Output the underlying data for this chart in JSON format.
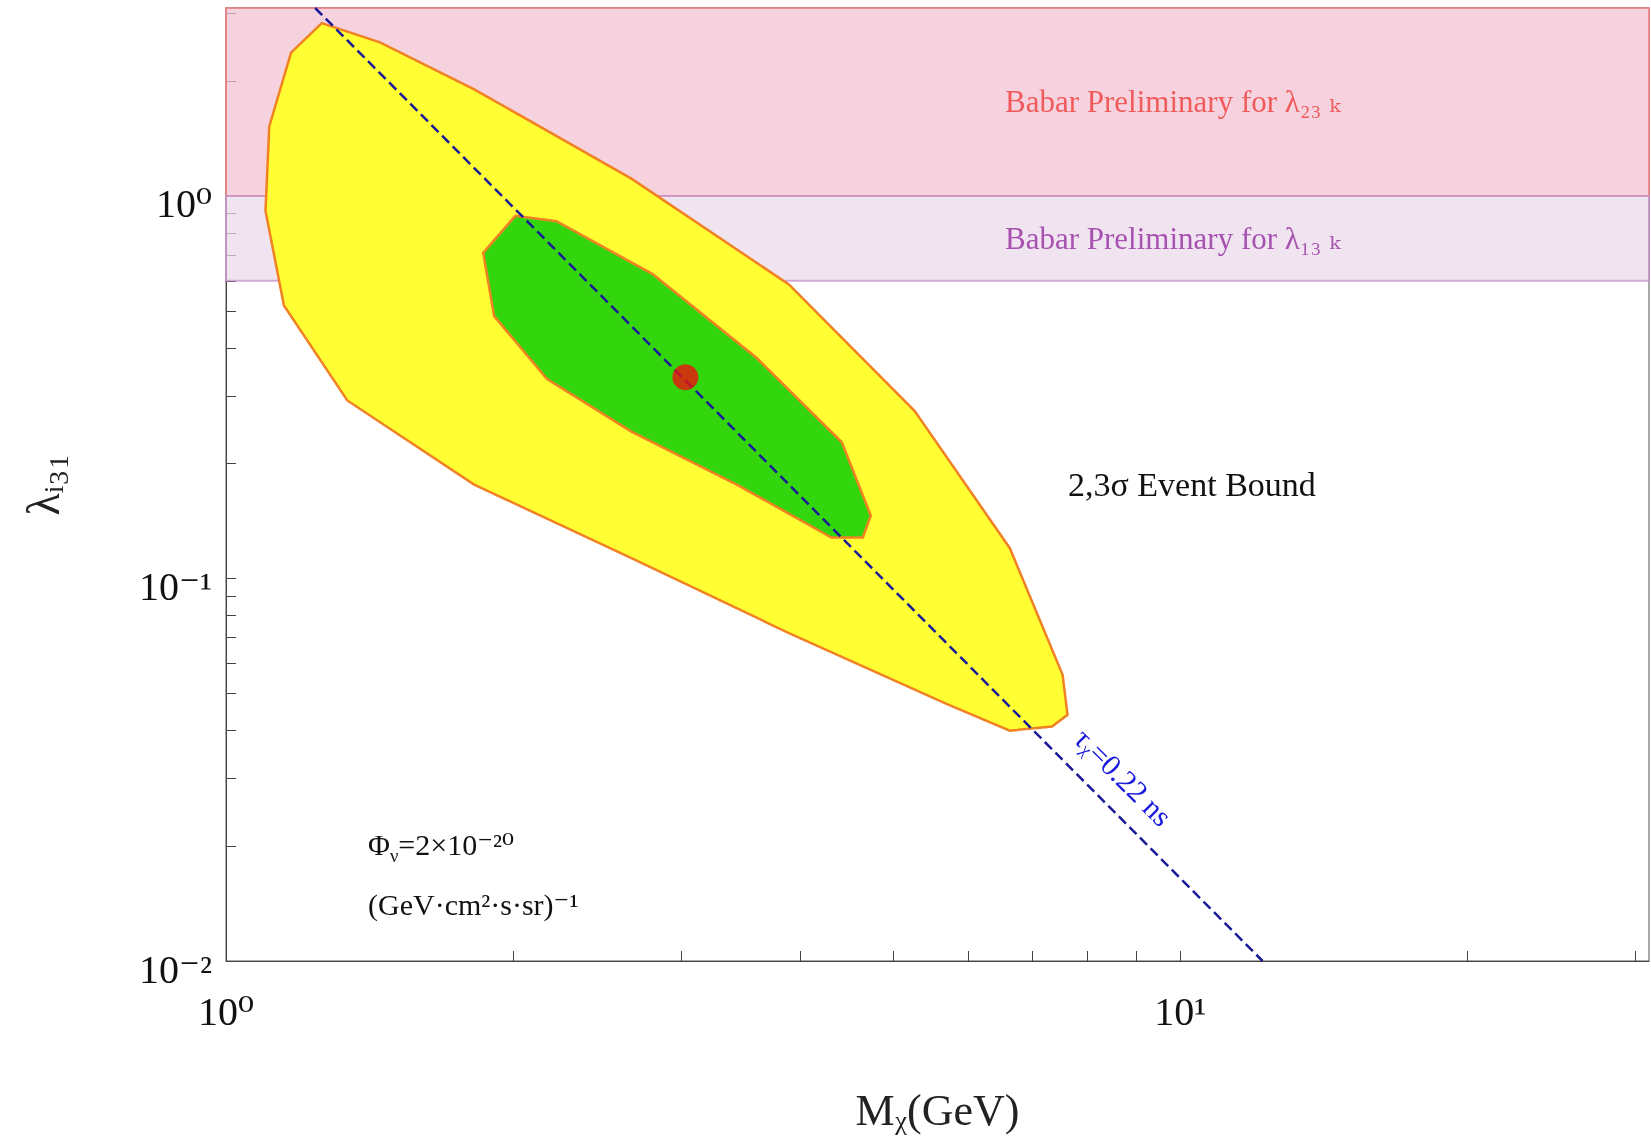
{
  "chart_data": {
    "type": "line",
    "xlabel": "Mᵪ(GeV)",
    "ylabel": "λᵢ₃₁",
    "log": "xy",
    "xlim": [
      1,
      31
    ],
    "ylim": [
      0.01,
      3.1
    ],
    "xticks": [
      {
        "value": 1,
        "label": "10⁰"
      },
      {
        "value": 2,
        "label": null
      },
      {
        "value": 3,
        "label": null
      },
      {
        "value": 4,
        "label": null
      },
      {
        "value": 5,
        "label": null
      },
      {
        "value": 6,
        "label": null
      },
      {
        "value": 7,
        "label": null
      },
      {
        "value": 8,
        "label": null
      },
      {
        "value": 9,
        "label": null
      },
      {
        "value": 10,
        "label": "10¹"
      },
      {
        "value": 20,
        "label": null
      },
      {
        "value": 30,
        "label": null
      }
    ],
    "yticks": [
      {
        "value": 0.01,
        "label": "10⁻²"
      },
      {
        "value": 0.02,
        "label": null
      },
      {
        "value": 0.03,
        "label": null
      },
      {
        "value": 0.04,
        "label": null
      },
      {
        "value": 0.05,
        "label": null
      },
      {
        "value": 0.06,
        "label": null
      },
      {
        "value": 0.07,
        "label": null
      },
      {
        "value": 0.08,
        "label": null
      },
      {
        "value": 0.09,
        "label": null
      },
      {
        "value": 0.1,
        "label": "10⁻¹"
      },
      {
        "value": 0.2,
        "label": null
      },
      {
        "value": 0.3,
        "label": null
      },
      {
        "value": 0.4,
        "label": null
      },
      {
        "value": 0.5,
        "label": null
      },
      {
        "value": 0.6,
        "label": null
      },
      {
        "value": 0.7,
        "label": null
      },
      {
        "value": 0.8,
        "label": null
      },
      {
        "value": 0.9,
        "label": null
      },
      {
        "value": 1,
        "label": "10⁰"
      },
      {
        "value": 2,
        "label": null
      },
      {
        "value": 3,
        "label": null
      }
    ],
    "grid": false,
    "legend": false,
    "series": [
      {
        "type": "area",
        "color": "#ffff33",
        "x": [
          1.26,
          1.45,
          1.82,
          2.66,
          3.89,
          5.27,
          6.63,
          7.53,
          7.62,
          7.34,
          6.63,
          5.69,
          3.89,
          2.66,
          1.82,
          1.34,
          1.15,
          1.1,
          1.11,
          1.17,
          1.26
        ],
        "values": [
          2.83,
          2.52,
          1.9,
          1.11,
          0.587,
          0.274,
          0.12,
          0.056,
          0.044,
          0.041,
          0.04,
          0.047,
          0.072,
          0.113,
          0.176,
          0.292,
          0.517,
          0.915,
          1.52,
          2.37,
          2.83
        ]
      },
      {
        "type": "area",
        "color": "#33d60c",
        "x": [
          1.86,
          2.01,
          2.22,
          2.8,
          3.6,
          4.42,
          4.74,
          4.65,
          4.31,
          3.43,
          2.66,
          2.17,
          1.91,
          1.86
        ],
        "values": [
          0.71,
          0.887,
          0.859,
          0.625,
          0.377,
          0.227,
          0.146,
          0.128,
          0.128,
          0.176,
          0.242,
          0.332,
          0.485,
          0.71
        ]
      },
      {
        "name": "τᵪ=0.22 ns",
        "color": "#1a1a99",
        "line_style": "dashed",
        "marker": "none",
        "x": [
          1.24,
          12.2
        ],
        "values": [
          3.1,
          0.01
        ]
      },
      {
        "type": "scatter",
        "color": "#ee1111",
        "marker": "circle",
        "x": [
          3.03
        ],
        "values": [
          0.336
        ]
      }
    ],
    "bands": [
      {
        "axis": "y",
        "from": 1,
        "to": 3.1,
        "label": "Babar Preliminary for λ₂₃ ₖ",
        "color": "#f2c1d1"
      },
      {
        "axis": "y",
        "from": 0.6,
        "to": 1,
        "label": "Babar Preliminary for λ₁₃ ₖ",
        "color": "#ecdaec"
      }
    ],
    "annotations": [
      "2,3σ Event Bound",
      "Φ$_{ν}$=2×10⁻²⁰",
      "(GeV·cm²·s·sr)⁻¹"
    ]
  }
}
